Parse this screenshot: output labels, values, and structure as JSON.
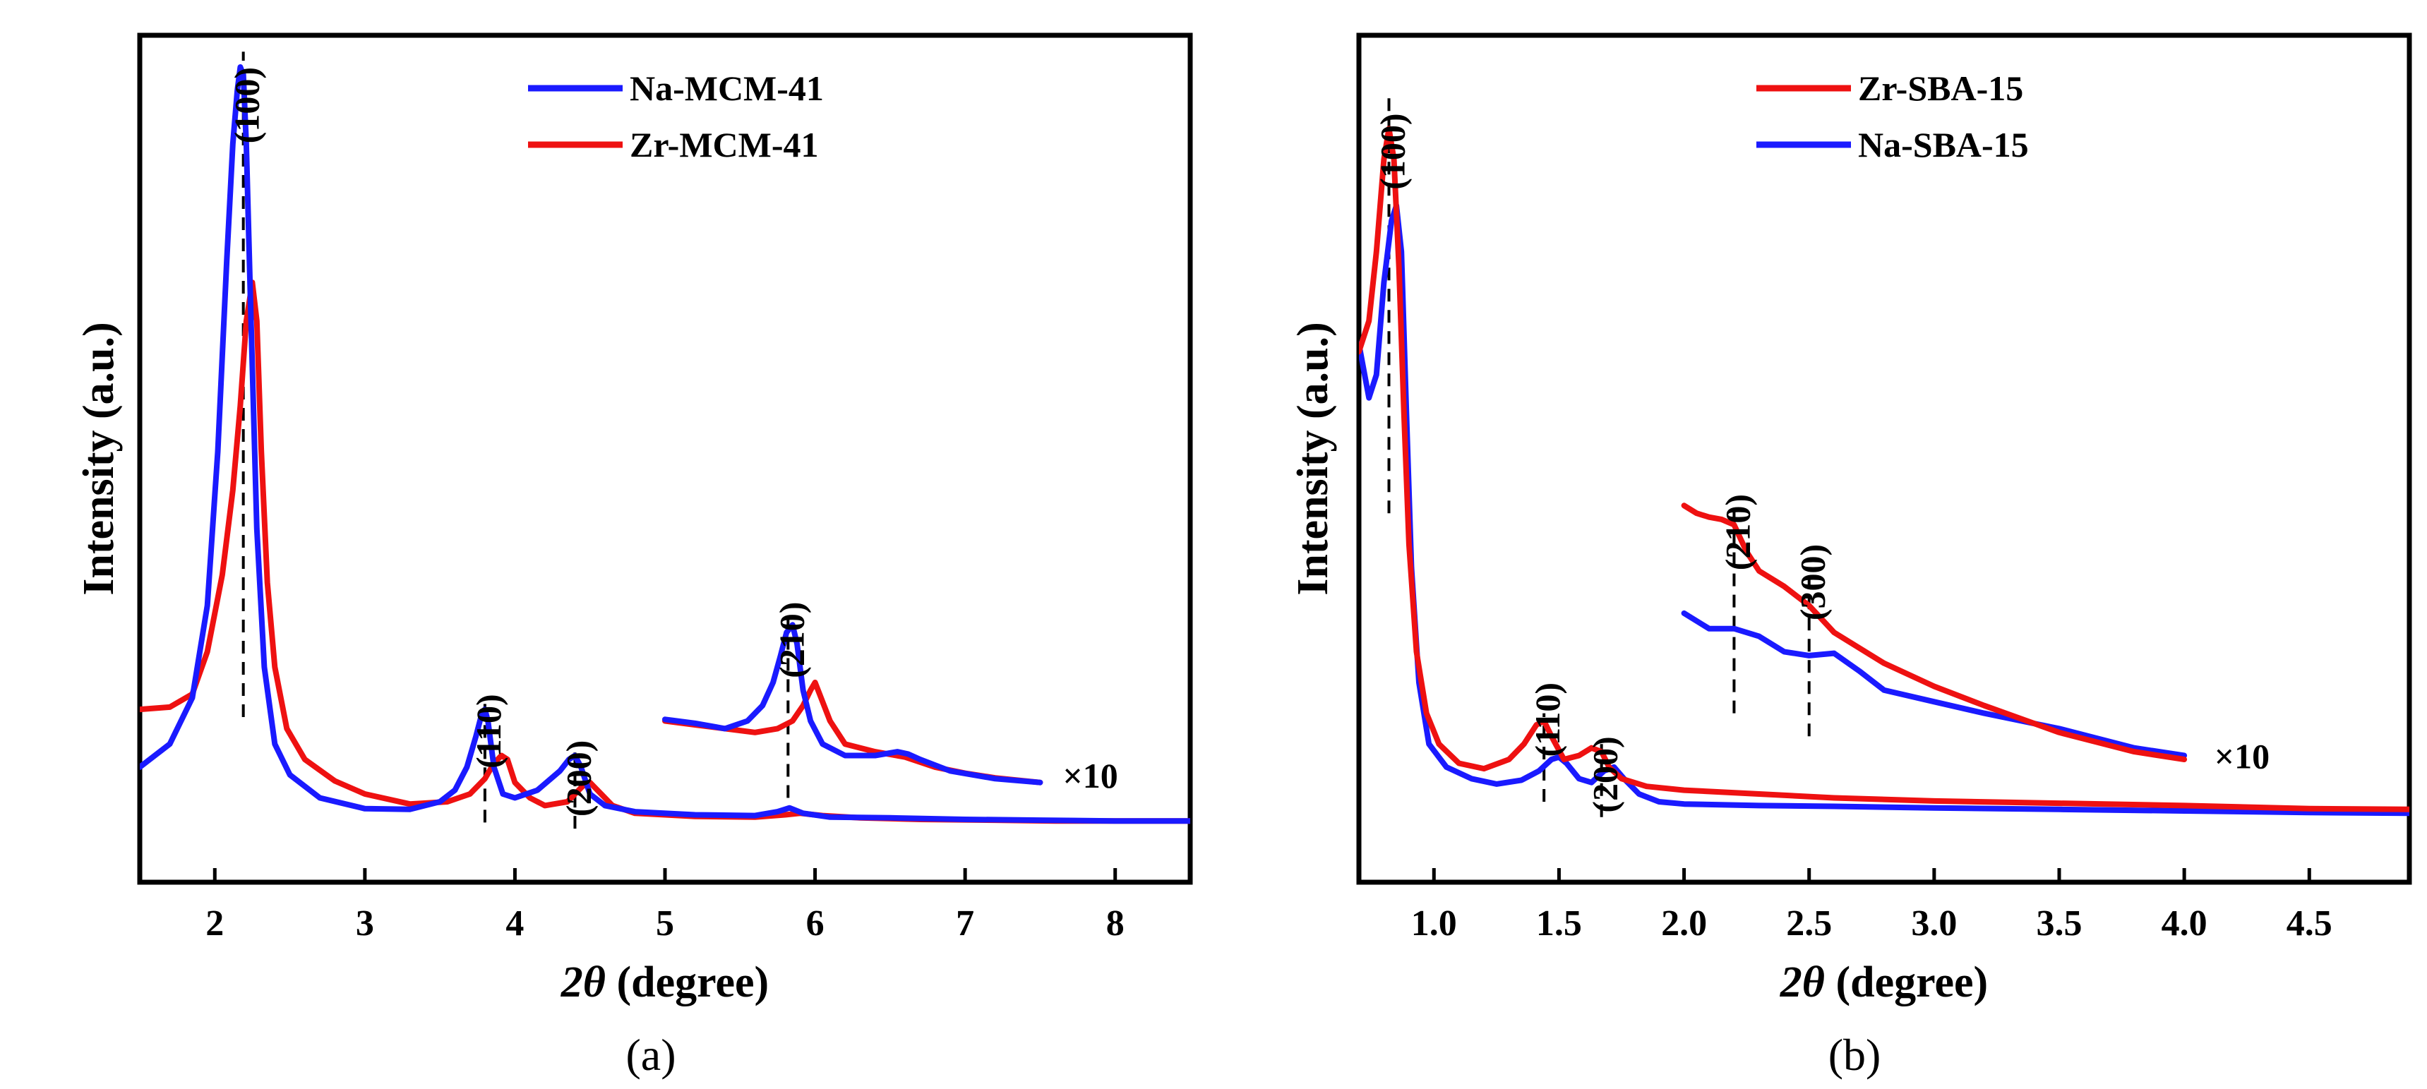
{
  "chart_data": [
    {
      "type": "line",
      "panel_label": "(a)",
      "xlabel_italic": "2θ",
      "xlabel_rest": " (degree)",
      "ylabel": "Intensity (a.u.)",
      "xlim": [
        1.5,
        8.5
      ],
      "ylim": [
        0,
        1
      ],
      "xticks": [
        2,
        3,
        4,
        5,
        6,
        7,
        8
      ],
      "xtick_labels": [
        "2",
        "3",
        "4",
        "5",
        "6",
        "7",
        "8"
      ],
      "show_y_ticks": false,
      "legend_position": "top-center",
      "series": [
        {
          "name": "Na-MCM-41",
          "color": "#1a1aff",
          "legend_order": 0,
          "segments": [
            {
              "x": [
                1.5,
                1.7,
                1.85,
                1.95,
                2.02,
                2.08,
                2.12,
                2.15,
                2.17,
                2.19,
                2.21,
                2.24,
                2.28,
                2.33,
                2.4,
                2.5,
                2.7,
                3.0,
                3.3,
                3.5,
                3.6,
                3.68,
                3.74,
                3.78,
                3.8,
                3.82,
                3.86,
                3.92,
                4.0,
                4.15,
                4.3,
                4.36,
                4.4,
                4.44,
                4.5,
                4.6,
                4.8,
                5.2,
                5.6,
                5.75,
                5.83,
                5.92,
                6.1,
                6.5,
                7.0,
                7.5,
                8.0,
                8.5
              ],
              "y": [
                0.09,
                0.12,
                0.18,
                0.3,
                0.5,
                0.75,
                0.9,
                0.97,
                1.0,
                0.99,
                0.9,
                0.68,
                0.4,
                0.22,
                0.12,
                0.08,
                0.05,
                0.036,
                0.035,
                0.045,
                0.06,
                0.09,
                0.13,
                0.16,
                0.165,
                0.15,
                0.09,
                0.055,
                0.05,
                0.06,
                0.085,
                0.1,
                0.105,
                0.09,
                0.055,
                0.04,
                0.032,
                0.028,
                0.027,
                0.032,
                0.037,
                0.03,
                0.025,
                0.024,
                0.022,
                0.021,
                0.02,
                0.02
              ]
            },
            {
              "x": [
                5.0,
                5.2,
                5.4,
                5.55,
                5.65,
                5.72,
                5.77,
                5.81,
                5.85,
                5.88,
                5.92,
                5.97,
                6.05,
                6.2,
                6.4,
                6.55,
                6.62,
                6.7,
                6.9,
                7.2,
                7.5
              ],
              "y": [
                0.152,
                0.147,
                0.14,
                0.15,
                0.17,
                0.2,
                0.235,
                0.265,
                0.275,
                0.25,
                0.19,
                0.15,
                0.12,
                0.105,
                0.105,
                0.11,
                0.107,
                0.1,
                0.085,
                0.075,
                0.07
              ]
            }
          ]
        },
        {
          "name": "Zr-MCM-41",
          "color": "#ee1111",
          "legend_order": 1,
          "segments": [
            {
              "x": [
                1.5,
                1.7,
                1.85,
                1.95,
                2.05,
                2.12,
                2.17,
                2.21,
                2.25,
                2.28,
                2.31,
                2.35,
                2.4,
                2.48,
                2.6,
                2.8,
                3.0,
                3.3,
                3.55,
                3.7,
                3.8,
                3.86,
                3.91,
                3.95,
                4.0,
                4.1,
                4.2,
                4.35,
                4.45,
                4.5,
                4.55,
                4.65,
                4.8,
                5.2,
                5.6,
                5.8,
                5.9,
                6.05,
                6.3,
                6.7,
                7.2,
                7.6,
                8.0,
                8.5
              ],
              "y": [
                0.165,
                0.168,
                0.185,
                0.24,
                0.34,
                0.45,
                0.56,
                0.67,
                0.72,
                0.67,
                0.5,
                0.33,
                0.22,
                0.14,
                0.1,
                0.072,
                0.055,
                0.042,
                0.045,
                0.055,
                0.075,
                0.095,
                0.105,
                0.1,
                0.07,
                0.05,
                0.04,
                0.045,
                0.065,
                0.07,
                0.06,
                0.04,
                0.03,
                0.026,
                0.025,
                0.028,
                0.03,
                0.027,
                0.024,
                0.022,
                0.021,
                0.02,
                0.02,
                0.02
              ]
            },
            {
              "x": [
                5.0,
                5.2,
                5.4,
                5.6,
                5.75,
                5.85,
                5.92,
                5.97,
                6.0,
                6.04,
                6.1,
                6.2,
                6.4,
                6.6,
                6.8,
                7.0,
                7.2,
                7.5
              ],
              "y": [
                0.15,
                0.145,
                0.14,
                0.135,
                0.14,
                0.15,
                0.17,
                0.19,
                0.2,
                0.18,
                0.15,
                0.12,
                0.11,
                0.103,
                0.09,
                0.082,
                0.076,
                0.07
              ]
            }
          ]
        }
      ],
      "peak_markers": [
        {
          "label": "(100)",
          "x": 2.19,
          "y_from": 0.155,
          "y_to": 1.02,
          "label_at": 1.0
        },
        {
          "label": "(110)",
          "x": 3.8,
          "y_from": 0.018,
          "y_to": 0.175,
          "label_at": 0.185
        },
        {
          "label": "(200)",
          "x": 4.4,
          "y_from": 0.01,
          "y_to": 0.12,
          "label_at": 0.125
        },
        {
          "label": "(210)",
          "x": 5.82,
          "y_from": 0.05,
          "y_to": 0.295,
          "label_at": 0.305
        }
      ],
      "annotation": {
        "text": "×10",
        "x": 7.65,
        "y": 0.08
      }
    },
    {
      "type": "line",
      "panel_label": "(b)",
      "xlabel_italic": "2θ",
      "xlabel_rest": " (degree)",
      "ylabel": "Intensity (a.u.)",
      "xlim": [
        0.7,
        4.9
      ],
      "ylim": [
        0,
        1
      ],
      "xticks": [
        1.0,
        1.5,
        2.0,
        2.5,
        3.0,
        3.5,
        4.0,
        4.5
      ],
      "xtick_labels": [
        "1.0",
        "1.5",
        "2.0",
        "2.5",
        "3.0",
        "3.5",
        "4.0",
        "4.5"
      ],
      "show_y_ticks": false,
      "legend_position": "top-center",
      "series": [
        {
          "name": "Zr-SBA-15",
          "color": "#ee1111",
          "legend_order": 0,
          "segments": [
            {
              "x": [
                0.7,
                0.74,
                0.77,
                0.8,
                0.82,
                0.84,
                0.86,
                0.88,
                0.9,
                0.93,
                0.97,
                1.02,
                1.1,
                1.2,
                1.3,
                1.36,
                1.41,
                1.44,
                1.47,
                1.52,
                1.58,
                1.63,
                1.67,
                1.7,
                1.75,
                1.85,
                2.0,
                2.3,
                2.6,
                3.0,
                3.5,
                4.0,
                4.5,
                4.9
              ],
              "y": [
                0.63,
                0.67,
                0.76,
                0.88,
                0.92,
                0.88,
                0.74,
                0.55,
                0.38,
                0.24,
                0.16,
                0.12,
                0.095,
                0.088,
                0.1,
                0.12,
                0.145,
                0.15,
                0.13,
                0.1,
                0.105,
                0.115,
                0.11,
                0.09,
                0.075,
                0.065,
                0.06,
                0.055,
                0.05,
                0.046,
                0.043,
                0.04,
                0.036,
                0.035
              ]
            },
            {
              "x": [
                2.0,
                2.05,
                2.1,
                2.15,
                2.2,
                2.25,
                2.3,
                2.4,
                2.5,
                2.6,
                2.8,
                3.0,
                3.2,
                3.5,
                3.8,
                4.0
              ],
              "y": [
                0.43,
                0.42,
                0.415,
                0.412,
                0.405,
                0.37,
                0.345,
                0.325,
                0.3,
                0.265,
                0.225,
                0.195,
                0.17,
                0.135,
                0.11,
                0.1
              ]
            }
          ]
        },
        {
          "name": "Na-SBA-15",
          "color": "#1a1aff",
          "legend_order": 1,
          "segments": [
            {
              "x": [
                0.7,
                0.74,
                0.77,
                0.8,
                0.83,
                0.85,
                0.87,
                0.89,
                0.91,
                0.94,
                0.98,
                1.05,
                1.15,
                1.25,
                1.35,
                1.42,
                1.47,
                1.5,
                1.53,
                1.58,
                1.63,
                1.68,
                1.72,
                1.76,
                1.82,
                1.9,
                2.0,
                2.3,
                2.6,
                3.0,
                3.5,
                4.0,
                4.5,
                4.9
              ],
              "y": [
                0.64,
                0.57,
                0.6,
                0.72,
                0.8,
                0.82,
                0.76,
                0.55,
                0.35,
                0.2,
                0.12,
                0.09,
                0.075,
                0.068,
                0.073,
                0.085,
                0.1,
                0.103,
                0.095,
                0.075,
                0.07,
                0.085,
                0.09,
                0.075,
                0.055,
                0.045,
                0.042,
                0.04,
                0.039,
                0.037,
                0.035,
                0.033,
                0.031,
                0.03
              ]
            },
            {
              "x": [
                2.0,
                2.1,
                2.2,
                2.3,
                2.4,
                2.5,
                2.6,
                2.7,
                2.8,
                3.0,
                3.2,
                3.5,
                3.8,
                4.0
              ],
              "y": [
                0.29,
                0.27,
                0.27,
                0.26,
                0.24,
                0.235,
                0.238,
                0.215,
                0.19,
                0.175,
                0.16,
                0.14,
                0.115,
                0.105
              ]
            }
          ]
        }
      ],
      "peak_markers": [
        {
          "label": "(100)",
          "x": 0.82,
          "y_from": 0.42,
          "y_to": 0.97,
          "label_at": 0.94
        },
        {
          "label": "(110)",
          "x": 1.44,
          "y_from": 0.045,
          "y_to": 0.16,
          "label_at": 0.2
        },
        {
          "label": "(200)",
          "x": 1.67,
          "y_from": 0.025,
          "y_to": 0.12,
          "label_at": 0.13
        },
        {
          "label": "(210)",
          "x": 2.2,
          "y_from": 0.16,
          "y_to": 0.435,
          "label_at": 0.445
        },
        {
          "label": "(300)",
          "x": 2.5,
          "y_from": 0.13,
          "y_to": 0.335,
          "label_at": 0.38
        }
      ],
      "annotation": {
        "text": "×10",
        "x": 4.12,
        "y": 0.105
      }
    }
  ]
}
